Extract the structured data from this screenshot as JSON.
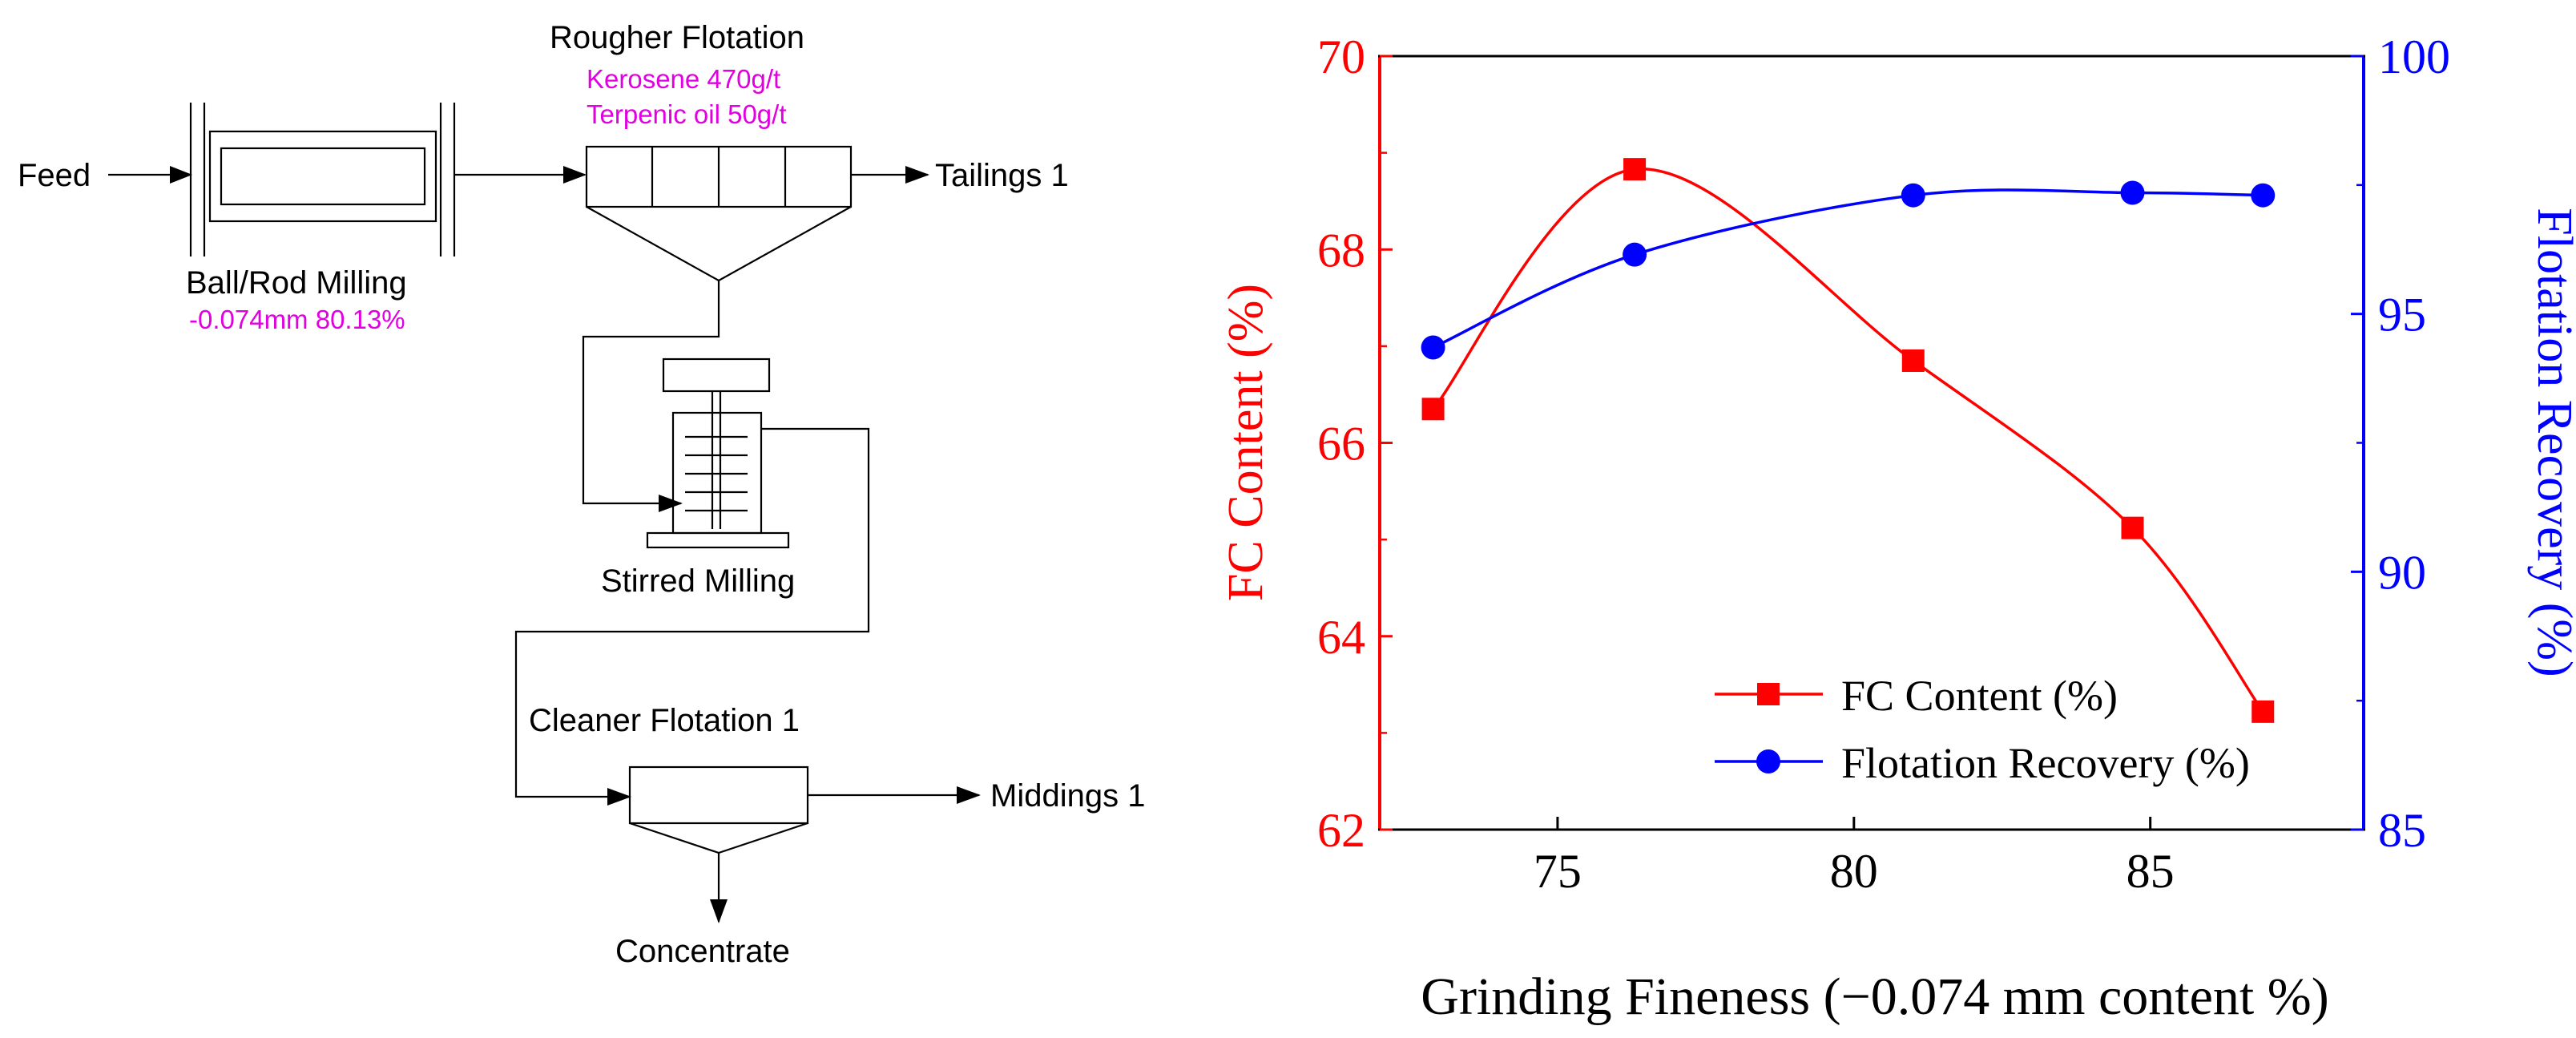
{
  "flowsheet": {
    "feed": "Feed",
    "ball_rod_milling": "Ball/Rod Milling",
    "milling_spec": "-0.074mm 80.13%",
    "rougher_title": "Rougher Flotation",
    "reagent_1": "Kerosene  470g/t",
    "reagent_2": "Terpenic oil 50g/t",
    "tailings": "Tailings 1",
    "stirred_milling": "Stirred Milling",
    "cleaner_title": "Cleaner Flotation 1",
    "middlings": "Middings 1",
    "concentrate": "Concentrate"
  },
  "colors": {
    "magenta": "#e000e0",
    "red": "#ff0000",
    "blue": "#0000ff",
    "black": "#000000"
  },
  "chart_data": {
    "type": "line",
    "title": "",
    "xlabel": "Grinding Fineness (−0.074 mm content %)",
    "ylabel_left": "FC Content (%)",
    "ylabel_right": "Flotation Recovery (%)",
    "xlim": [
      72,
      88.6
    ],
    "ylim_left": [
      62,
      70
    ],
    "ylim_right": [
      85,
      100
    ],
    "xticks": [
      "75",
      "80",
      "85"
    ],
    "yticks_left": [
      "62",
      "64",
      "66",
      "68",
      "70"
    ],
    "yticks_right": [
      "85",
      "90",
      "95",
      "100"
    ],
    "legend_position": "bottom-right",
    "series": [
      {
        "name": "FC Content (%)",
        "axis": "left",
        "color": "#ff0000",
        "marker": "square",
        "x": [
          72.9,
          76.3,
          81.0,
          84.7,
          86.9
        ],
        "values": [
          66.35,
          68.83,
          66.85,
          65.12,
          63.22
        ]
      },
      {
        "name": "Flotation Recovery (%)",
        "axis": "right",
        "color": "#0000ff",
        "marker": "circle",
        "x": [
          72.9,
          76.3,
          81.0,
          84.7,
          86.9
        ],
        "values": [
          94.35,
          96.15,
          97.3,
          97.35,
          97.3
        ]
      }
    ]
  }
}
